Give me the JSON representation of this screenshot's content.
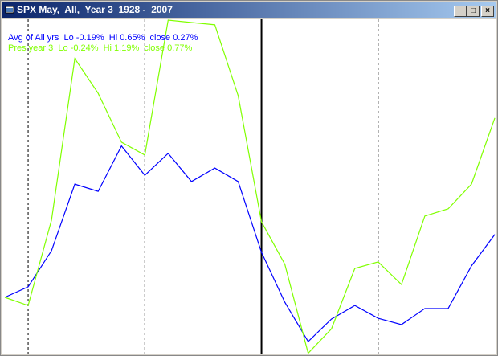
{
  "window": {
    "title": "SPX May,  All,  Year 3  1928 -  2007",
    "minimize": "_",
    "maximize": "□",
    "close": "×"
  },
  "chart_data": {
    "type": "line",
    "title": "SPX May,  All,  Year 3  1928 -  2007",
    "xlabel": "",
    "ylabel": "",
    "ylim": [
      -0.26,
      1.22
    ],
    "grid": false,
    "legend_placement": "top-left",
    "dashed_vlines_at_index": [
      1,
      6,
      16
    ],
    "solid_vline_at_index": 11,
    "series": [
      {
        "name": "Avg of All yrs",
        "legend": "Avg of All yrs  Lo -0.19%  Hi 0.65%  close 0.27%",
        "color": "#0000ff",
        "values": [
          0,
          0.045,
          0.2,
          0.486,
          0.455,
          0.65,
          0.524,
          0.618,
          0.497,
          0.555,
          0.497,
          0.193,
          -0.021,
          -0.19,
          -0.093,
          -0.035,
          -0.09,
          -0.117,
          -0.048,
          -0.048,
          0.135,
          0.27
        ]
      },
      {
        "name": "Pres year 3",
        "legend": "Pres year 3  Lo -0.24%  Hi 1.19%  close 0.77%",
        "color": "#80ff00",
        "values": [
          0,
          -0.035,
          0.331,
          1.025,
          0.876,
          0.666,
          0.611,
          1.19,
          1.18,
          1.17,
          0.866,
          0.324,
          0.142,
          -0.24,
          -0.135,
          0.124,
          0.152,
          0.055,
          0.349,
          0.38,
          0.486,
          0.77
        ]
      }
    ]
  }
}
